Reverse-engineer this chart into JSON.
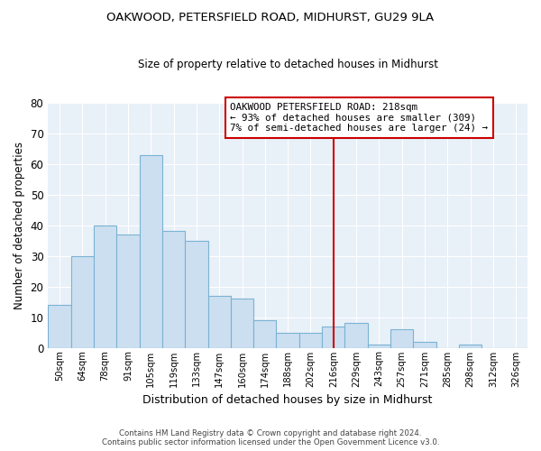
{
  "title": "OAKWOOD, PETERSFIELD ROAD, MIDHURST, GU29 9LA",
  "subtitle": "Size of property relative to detached houses in Midhurst",
  "xlabel": "Distribution of detached houses by size in Midhurst",
  "ylabel": "Number of detached properties",
  "bar_labels": [
    "50sqm",
    "64sqm",
    "78sqm",
    "91sqm",
    "105sqm",
    "119sqm",
    "133sqm",
    "147sqm",
    "160sqm",
    "174sqm",
    "188sqm",
    "202sqm",
    "216sqm",
    "229sqm",
    "243sqm",
    "257sqm",
    "271sqm",
    "285sqm",
    "298sqm",
    "312sqm",
    "326sqm"
  ],
  "bar_heights": [
    14,
    30,
    40,
    37,
    63,
    38,
    35,
    17,
    16,
    9,
    5,
    5,
    7,
    8,
    1,
    6,
    2,
    0,
    1,
    0,
    0
  ],
  "bar_color": "#ccdff0",
  "bar_edge_color": "#7ab3d3",
  "plot_bg_color": "#e8f0f8",
  "grid_color": "#ffffff",
  "vline_color": "#cc0000",
  "vline_x_index": 12.5,
  "annotation_title": "OAKWOOD PETERSFIELD ROAD: 218sqm",
  "annotation_line1": "← 93% of detached houses are smaller (309)",
  "annotation_line2": "7% of semi-detached houses are larger (24) →",
  "annotation_box_edge": "#cc0000",
  "ylim": [
    0,
    80
  ],
  "yticks": [
    0,
    10,
    20,
    30,
    40,
    50,
    60,
    70,
    80
  ],
  "footnote1": "Contains HM Land Registry data © Crown copyright and database right 2024.",
  "footnote2": "Contains public sector information licensed under the Open Government Licence v3.0."
}
